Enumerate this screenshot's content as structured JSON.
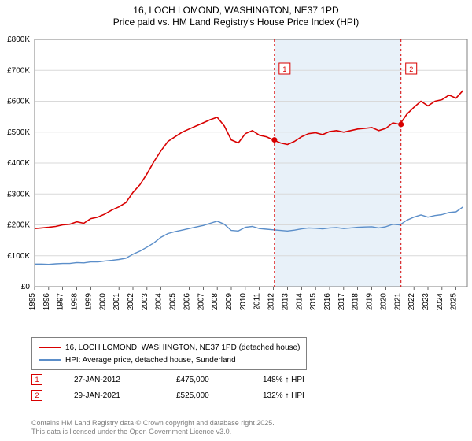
{
  "title_line1": "16, LOCH LOMOND, WASHINGTON, NE37 1PD",
  "title_line2": "Price paid vs. HM Land Registry's House Price Index (HPI)",
  "title_fontsize": 12,
  "chart": {
    "type": "line",
    "background_color": "#ffffff",
    "plot_border_color": "#808080",
    "grid_color": "#d9d9d9",
    "shaded_region_color": "#d5e6f4",
    "shaded_region_opacity": 0.55,
    "axis_font_size": 10,
    "xlim": [
      1995,
      2025.8
    ],
    "ylim": [
      0,
      800000
    ],
    "ytick_step": 100000,
    "ytick_labels": [
      "£0",
      "£100K",
      "£200K",
      "£300K",
      "£400K",
      "£500K",
      "£600K",
      "£700K",
      "£800K"
    ],
    "xtick_years": [
      1995,
      1996,
      1997,
      1998,
      1999,
      2000,
      2001,
      2002,
      2003,
      2004,
      2005,
      2006,
      2007,
      2008,
      2009,
      2010,
      2011,
      2012,
      2013,
      2014,
      2015,
      2016,
      2017,
      2018,
      2019,
      2020,
      2021,
      2022,
      2023,
      2024,
      2025
    ],
    "series": [
      {
        "name": "16, LOCH LOMOND, WASHINGTON, NE37 1PD (detached house)",
        "color": "#d80000",
        "width": 1.6,
        "x": [
          1995,
          1995.5,
          1996,
          1996.5,
          1997,
          1997.5,
          1998,
          1998.5,
          1999,
          1999.5,
          2000,
          2000.5,
          2001,
          2001.5,
          2002,
          2002.5,
          2003,
          2003.5,
          2004,
          2004.5,
          2005,
          2005.5,
          2006,
          2006.5,
          2007,
          2007.5,
          2008,
          2008.5,
          2009,
          2009.5,
          2010,
          2010.5,
          2011,
          2011.5,
          2012,
          2012.5,
          2013,
          2013.5,
          2014,
          2014.5,
          2015,
          2015.5,
          2016,
          2016.5,
          2017,
          2017.5,
          2018,
          2018.5,
          2019,
          2019.5,
          2020,
          2020.5,
          2021,
          2021.5,
          2022,
          2022.5,
          2023,
          2023.5,
          2024,
          2024.5,
          2025,
          2025.5
        ],
        "y": [
          188000,
          190000,
          192000,
          195000,
          200000,
          202000,
          210000,
          205000,
          220000,
          225000,
          235000,
          248000,
          258000,
          272000,
          305000,
          330000,
          365000,
          405000,
          440000,
          470000,
          485000,
          500000,
          510000,
          520000,
          530000,
          540000,
          548000,
          520000,
          475000,
          465000,
          495000,
          505000,
          490000,
          485000,
          475000,
          465000,
          460000,
          470000,
          485000,
          495000,
          498000,
          492000,
          502000,
          505000,
          500000,
          505000,
          510000,
          512000,
          515000,
          505000,
          512000,
          530000,
          525000,
          558000,
          580000,
          600000,
          585000,
          600000,
          605000,
          620000,
          610000,
          635000
        ]
      },
      {
        "name": "HPI: Average price, detached house, Sunderland",
        "color": "#5b8ec9",
        "width": 1.4,
        "x": [
          1995,
          1995.5,
          1996,
          1996.5,
          1997,
          1997.5,
          1998,
          1998.5,
          1999,
          1999.5,
          2000,
          2000.5,
          2001,
          2001.5,
          2002,
          2002.5,
          2003,
          2003.5,
          2004,
          2004.5,
          2005,
          2005.5,
          2006,
          2006.5,
          2007,
          2007.5,
          2008,
          2008.5,
          2009,
          2009.5,
          2010,
          2010.5,
          2011,
          2011.5,
          2012,
          2012.5,
          2013,
          2013.5,
          2014,
          2014.5,
          2015,
          2015.5,
          2016,
          2016.5,
          2017,
          2017.5,
          2018,
          2018.5,
          2019,
          2019.5,
          2020,
          2020.5,
          2021,
          2021.5,
          2022,
          2022.5,
          2023,
          2023.5,
          2024,
          2024.5,
          2025,
          2025.5
        ],
        "y": [
          73000,
          73000,
          72000,
          74000,
          75000,
          75000,
          78000,
          77000,
          80000,
          80000,
          83000,
          85000,
          88000,
          92000,
          105000,
          115000,
          128000,
          142000,
          160000,
          172000,
          178000,
          183000,
          188000,
          193000,
          198000,
          205000,
          212000,
          202000,
          182000,
          180000,
          192000,
          195000,
          188000,
          186000,
          184000,
          182000,
          180000,
          183000,
          187000,
          190000,
          189000,
          187000,
          190000,
          191000,
          188000,
          190000,
          192000,
          193000,
          194000,
          190000,
          194000,
          202000,
          200000,
          215000,
          225000,
          232000,
          225000,
          230000,
          233000,
          240000,
          242000,
          258000
        ]
      }
    ],
    "markers": [
      {
        "label": "1",
        "year": 2012.07,
        "price": 475000,
        "line_color": "#d80000",
        "point_color": "#d80000"
      },
      {
        "label": "2",
        "year": 2021.08,
        "price": 525000,
        "line_color": "#d80000",
        "point_color": "#d80000"
      }
    ],
    "shaded_region": {
      "from_year": 2012.07,
      "to_year": 2021.08
    }
  },
  "legend": {
    "items": [
      {
        "color": "#d80000",
        "label": "16, LOCH LOMOND, WASHINGTON, NE37 1PD (detached house)"
      },
      {
        "color": "#5b8ec9",
        "label": "HPI: Average price, detached house, Sunderland"
      }
    ]
  },
  "marker_table": [
    {
      "badge": "1",
      "date": "27-JAN-2012",
      "price": "£475,000",
      "hpi": "148% ↑ HPI"
    },
    {
      "badge": "2",
      "date": "29-JAN-2021",
      "price": "£525,000",
      "hpi": "132% ↑ HPI"
    }
  ],
  "footer_line1": "Contains HM Land Registry data © Crown copyright and database right 2025.",
  "footer_line2": "This data is licensed under the Open Government Licence v3.0.",
  "footer_color": "#808080"
}
